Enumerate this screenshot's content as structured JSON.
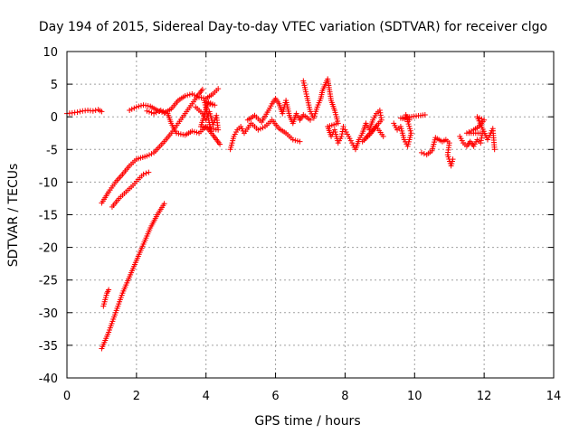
{
  "chart_data": {
    "type": "scatter",
    "title": "Day 194 of 2015, Sidereal Day-to-day VTEC variation (SDTVAR) for receiver clgo",
    "xlabel": "GPS time / hours",
    "ylabel": "SDTVAR / TECUs",
    "xlim": [
      0,
      14
    ],
    "ylim": [
      -40,
      10
    ],
    "xticks": [
      "0",
      "2",
      "4",
      "6",
      "8",
      "10",
      "12",
      "14"
    ],
    "yticks": [
      "10",
      "5",
      "0",
      "-5",
      "-10",
      "-15",
      "-20",
      "-25",
      "-30",
      "-35",
      "-40"
    ],
    "grid": true,
    "marker": "+",
    "color": "#ff0000",
    "segments": [
      {
        "name": "track-flat-start",
        "points": [
          [
            0.0,
            0.5
          ],
          [
            0.15,
            0.6
          ],
          [
            0.3,
            0.7
          ],
          [
            0.45,
            0.9
          ],
          [
            0.6,
            1.0
          ],
          [
            0.75,
            0.9
          ],
          [
            0.9,
            1.1
          ],
          [
            1.0,
            0.8
          ]
        ]
      },
      {
        "name": "track-rising-upper",
        "points": [
          [
            1.0,
            -13.2
          ],
          [
            1.2,
            -11.5
          ],
          [
            1.4,
            -10.0
          ],
          [
            1.6,
            -8.8
          ],
          [
            1.8,
            -7.5
          ],
          [
            2.0,
            -6.5
          ],
          [
            2.3,
            -6.0
          ],
          [
            2.5,
            -5.5
          ],
          [
            2.8,
            -3.8
          ],
          [
            3.0,
            -2.5
          ],
          [
            3.2,
            -1.0
          ],
          [
            3.4,
            0.5
          ],
          [
            3.6,
            2.0
          ],
          [
            3.8,
            3.5
          ],
          [
            3.9,
            4.2
          ]
        ]
      },
      {
        "name": "track-rising-middle",
        "points": [
          [
            1.3,
            -13.8
          ],
          [
            1.5,
            -12.5
          ],
          [
            1.7,
            -11.5
          ],
          [
            1.9,
            -10.5
          ],
          [
            2.05,
            -9.6
          ],
          [
            2.2,
            -8.8
          ],
          [
            2.35,
            -8.5
          ]
        ]
      },
      {
        "name": "track-rising-steep",
        "points": [
          [
            1.0,
            -35.5
          ],
          [
            1.2,
            -33.0
          ],
          [
            1.4,
            -30.0
          ],
          [
            1.6,
            -27.0
          ],
          [
            1.8,
            -24.5
          ],
          [
            2.0,
            -22.0
          ],
          [
            2.2,
            -19.5
          ],
          [
            2.4,
            -17.0
          ],
          [
            2.6,
            -15.0
          ],
          [
            2.8,
            -13.3
          ]
        ]
      },
      {
        "name": "track-steep-offshoot",
        "points": [
          [
            1.05,
            -29.0
          ],
          [
            1.1,
            -28.0
          ],
          [
            1.15,
            -27.0
          ],
          [
            1.2,
            -26.5
          ]
        ]
      },
      {
        "name": "track-hump",
        "points": [
          [
            1.8,
            1.0
          ],
          [
            2.0,
            1.5
          ],
          [
            2.2,
            1.8
          ],
          [
            2.4,
            1.6
          ],
          [
            2.6,
            1.0
          ],
          [
            2.8,
            0.6
          ],
          [
            3.0,
            1.2
          ],
          [
            3.2,
            2.5
          ],
          [
            3.4,
            3.2
          ],
          [
            3.6,
            3.5
          ],
          [
            3.8,
            3.0
          ],
          [
            4.0,
            2.8
          ],
          [
            4.2,
            3.5
          ],
          [
            4.35,
            4.3
          ]
        ]
      },
      {
        "name": "track-dip",
        "points": [
          [
            2.3,
            0.9
          ],
          [
            2.5,
            0.5
          ],
          [
            2.7,
            1.0
          ],
          [
            2.9,
            0.5
          ],
          [
            3.0,
            -1.0
          ],
          [
            3.15,
            -2.5
          ],
          [
            3.4,
            -2.8
          ],
          [
            3.6,
            -2.2
          ],
          [
            3.8,
            -2.5
          ],
          [
            4.0,
            -1.5
          ],
          [
            4.2,
            -2.8
          ],
          [
            4.3,
            -3.5
          ],
          [
            4.4,
            -4.2
          ]
        ]
      },
      {
        "name": "track-scatter-4h",
        "points": [
          [
            3.7,
            1.5
          ],
          [
            3.9,
            0.5
          ],
          [
            4.0,
            -0.5
          ],
          [
            4.1,
            0.8
          ],
          [
            4.2,
            -1.2
          ],
          [
            4.3,
            0.2
          ],
          [
            4.35,
            -2.0
          ],
          [
            3.85,
            -1.5
          ],
          [
            4.05,
            2.0
          ],
          [
            4.25,
            1.8
          ],
          [
            3.95,
            2.5
          ],
          [
            4.15,
            -2.2
          ]
        ]
      },
      {
        "name": "track-5-7h",
        "points": [
          [
            4.7,
            -5.0
          ],
          [
            4.8,
            -3.0
          ],
          [
            4.9,
            -2.0
          ],
          [
            5.0,
            -1.5
          ],
          [
            5.1,
            -2.5
          ],
          [
            5.3,
            -1.0
          ],
          [
            5.5,
            -2.0
          ],
          [
            5.7,
            -1.5
          ],
          [
            5.9,
            -0.5
          ],
          [
            6.1,
            -1.8
          ],
          [
            6.3,
            -2.5
          ],
          [
            6.5,
            -3.5
          ],
          [
            6.7,
            -3.8
          ]
        ]
      },
      {
        "name": "track-5-7h-upper",
        "points": [
          [
            5.2,
            -0.5
          ],
          [
            5.4,
            0.2
          ],
          [
            5.6,
            -0.8
          ],
          [
            5.8,
            1.0
          ],
          [
            5.9,
            2.0
          ],
          [
            6.0,
            2.8
          ],
          [
            6.1,
            2.0
          ],
          [
            6.2,
            0.5
          ],
          [
            6.3,
            2.5
          ],
          [
            6.4,
            0.2
          ],
          [
            6.5,
            -1.0
          ],
          [
            6.6,
            0.5
          ],
          [
            6.7,
            -0.5
          ],
          [
            6.8,
            0.3
          ],
          [
            7.0,
            -0.5
          ]
        ]
      },
      {
        "name": "track-7-8h",
        "points": [
          [
            6.8,
            5.5
          ],
          [
            7.0,
            0.8
          ],
          [
            7.1,
            -0.2
          ],
          [
            7.2,
            1.5
          ],
          [
            7.3,
            2.8
          ],
          [
            7.35,
            4.0
          ],
          [
            7.45,
            5.2
          ],
          [
            7.5,
            5.8
          ],
          [
            7.6,
            2.5
          ],
          [
            7.7,
            1.0
          ],
          [
            7.8,
            -1.0
          ],
          [
            7.5,
            -1.5
          ],
          [
            7.6,
            -3.0
          ],
          [
            7.7,
            -2.0
          ],
          [
            7.8,
            -4.0
          ],
          [
            7.9,
            -3.0
          ],
          [
            7.95,
            -1.5
          ]
        ]
      },
      {
        "name": "track-8-9h",
        "points": [
          [
            8.0,
            -2.0
          ],
          [
            8.1,
            -3.0
          ],
          [
            8.2,
            -4.0
          ],
          [
            8.3,
            -5.0
          ],
          [
            8.4,
            -3.5
          ],
          [
            8.5,
            -2.5
          ],
          [
            8.6,
            -1.0
          ],
          [
            8.7,
            -2.0
          ],
          [
            8.8,
            -0.5
          ],
          [
            8.9,
            0.5
          ],
          [
            9.0,
            1.0
          ],
          [
            9.05,
            -0.5
          ],
          [
            8.5,
            -3.8
          ],
          [
            8.7,
            -2.8
          ],
          [
            8.9,
            -1.5
          ],
          [
            9.1,
            -3.0
          ]
        ]
      },
      {
        "name": "track-9-10h",
        "points": [
          [
            9.4,
            -1.0
          ],
          [
            9.5,
            -2.0
          ],
          [
            9.6,
            -1.5
          ],
          [
            9.7,
            -3.5
          ],
          [
            9.8,
            -4.5
          ],
          [
            9.9,
            -2.5
          ],
          [
            9.75,
            0.3
          ],
          [
            9.85,
            -0.5
          ],
          [
            9.6,
            -0.2
          ],
          [
            10.3,
            0.3
          ]
        ]
      },
      {
        "name": "track-10-11h",
        "points": [
          [
            10.2,
            -5.5
          ],
          [
            10.35,
            -5.8
          ],
          [
            10.5,
            -5.2
          ],
          [
            10.6,
            -3.2
          ],
          [
            10.7,
            -3.5
          ],
          [
            10.8,
            -3.8
          ],
          [
            10.9,
            -3.5
          ],
          [
            11.0,
            -4.0
          ],
          [
            10.95,
            -5.8
          ],
          [
            11.05,
            -7.5
          ],
          [
            11.1,
            -6.5
          ]
        ]
      },
      {
        "name": "track-11-12h",
        "points": [
          [
            11.3,
            -3.0
          ],
          [
            11.4,
            -4.0
          ],
          [
            11.5,
            -4.5
          ],
          [
            11.6,
            -3.8
          ],
          [
            11.7,
            -4.5
          ],
          [
            11.8,
            -3.5
          ],
          [
            11.9,
            -4.0
          ],
          [
            11.95,
            -2.5
          ],
          [
            11.5,
            -2.5
          ],
          [
            11.7,
            -2.0
          ],
          [
            11.85,
            -1.5
          ],
          [
            12.0,
            -0.5
          ],
          [
            11.8,
            0.0
          ],
          [
            12.1,
            -3.5
          ],
          [
            12.25,
            -1.8
          ],
          [
            12.3,
            -5.0
          ]
        ]
      }
    ]
  }
}
